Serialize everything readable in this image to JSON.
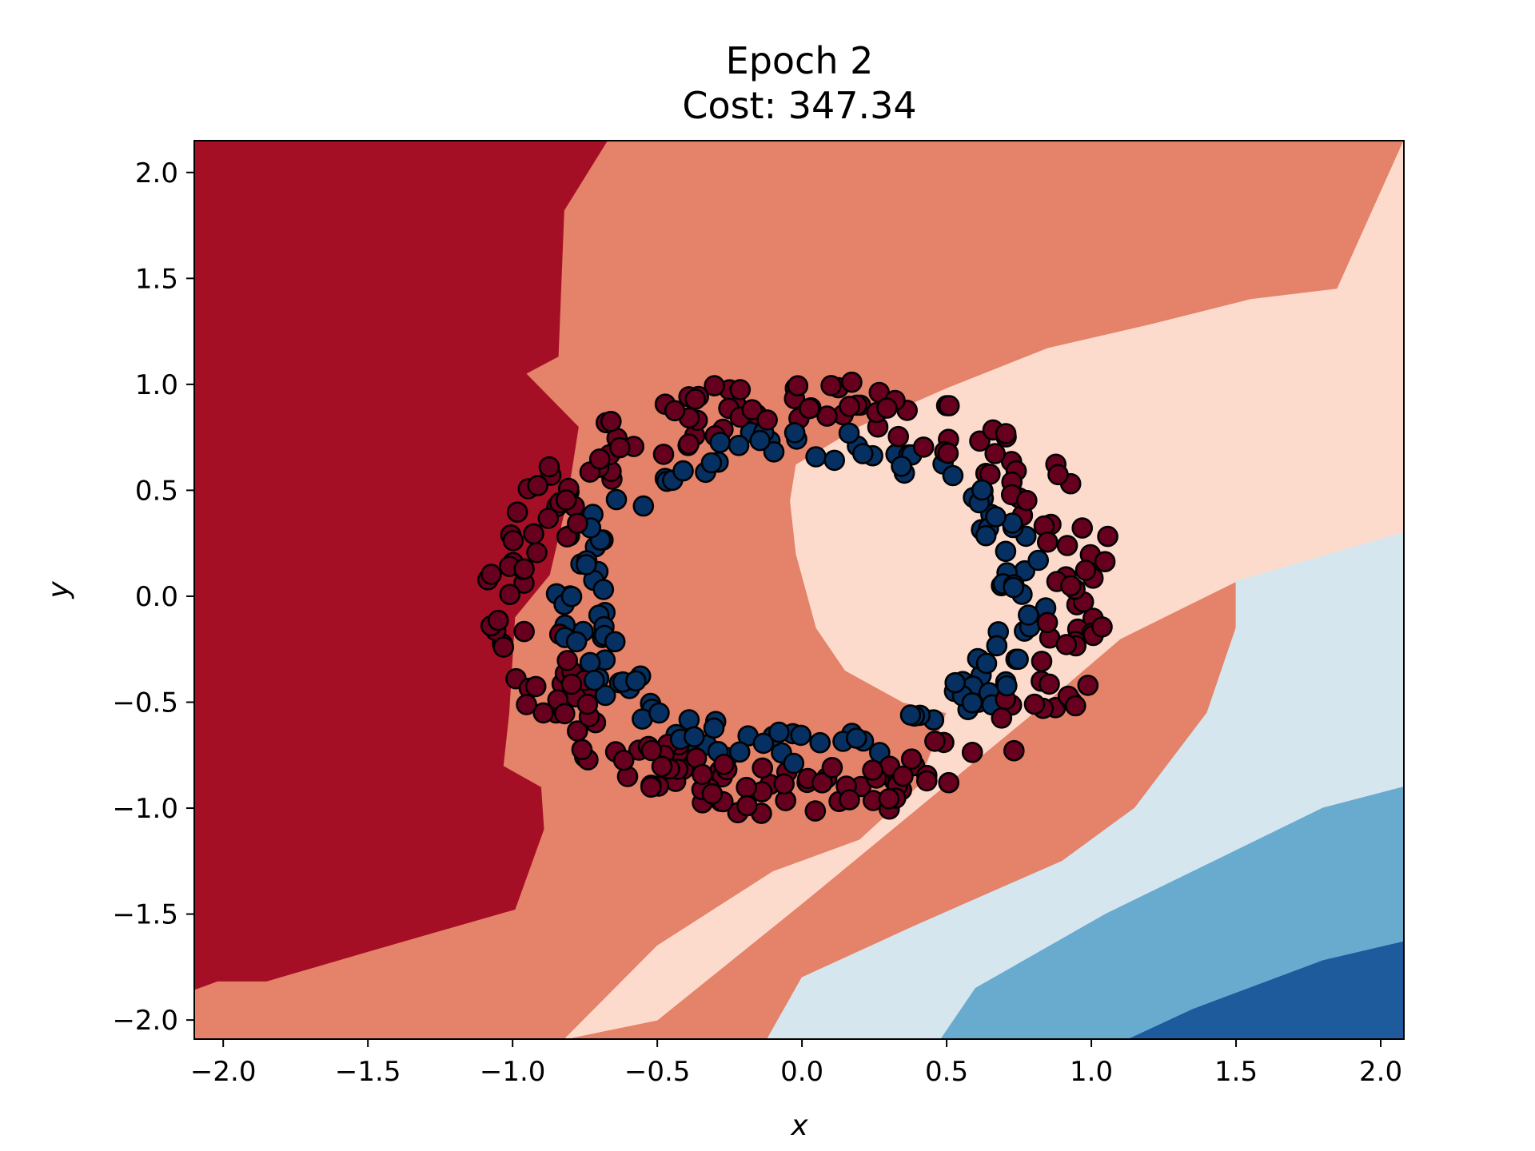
{
  "chart_data": {
    "type": "scatter",
    "title": "Epoch 2",
    "subtitle": "Cost: 347.34",
    "xlabel": "x",
    "ylabel": "y",
    "xlim": [
      -2.1,
      2.08
    ],
    "ylim": [
      -2.09,
      2.15
    ],
    "xticks": [
      -2.0,
      -1.5,
      -1.0,
      -0.5,
      0.0,
      0.5,
      1.0,
      1.5,
      2.0
    ],
    "yticks": [
      -2.0,
      -1.5,
      -1.0,
      -0.5,
      0.0,
      0.5,
      1.0,
      1.5,
      2.0
    ],
    "xtick_labels": [
      "−2.0",
      "−1.5",
      "−1.0",
      "−0.5",
      "0.0",
      "0.5",
      "1.0",
      "1.5",
      "2.0"
    ],
    "ytick_labels": [
      "−2.0",
      "−1.5",
      "−1.0",
      "−0.5",
      "0.0",
      "0.5",
      "1.0",
      "1.5",
      "2.0"
    ],
    "grid": false,
    "colors": {
      "class_outer": "#67001f",
      "class_inner": "#053061",
      "level_1": "#a50f26",
      "level_2": "#e4826a",
      "level_3": "#fcdbcc",
      "level_4": "#d6e6ef",
      "level_5": "#69abcf",
      "level_6": "#1d5b9d"
    },
    "decision_regions": [
      {
        "level": 1,
        "polygon": [
          [
            -2.1,
            2.15
          ],
          [
            -0.67,
            2.15
          ],
          [
            -0.82,
            1.82
          ],
          [
            -0.84,
            1.13
          ],
          [
            -0.95,
            1.05
          ],
          [
            -0.77,
            0.8
          ],
          [
            -0.81,
            0.45
          ],
          [
            -0.87,
            0.1
          ],
          [
            -0.99,
            -0.1
          ],
          [
            -1.01,
            -0.55
          ],
          [
            -1.03,
            -0.8
          ],
          [
            -0.9,
            -0.9
          ],
          [
            -0.89,
            -1.1
          ],
          [
            -0.99,
            -1.48
          ],
          [
            -1.5,
            -1.68
          ],
          [
            -1.85,
            -1.82
          ],
          [
            -2.02,
            -1.82
          ],
          [
            -2.1,
            -1.86
          ]
        ]
      },
      {
        "level": 2,
        "polygon": [
          [
            -0.67,
            2.15
          ],
          [
            2.08,
            2.15
          ],
          [
            1.85,
            1.45
          ],
          [
            1.55,
            1.4
          ],
          [
            1.2,
            1.28
          ],
          [
            0.85,
            1.17
          ],
          [
            0.5,
            0.98
          ],
          [
            0.2,
            0.8
          ],
          [
            -0.02,
            0.62
          ],
          [
            -0.04,
            0.45
          ],
          [
            -0.02,
            0.2
          ],
          [
            0.05,
            -0.15
          ],
          [
            0.15,
            -0.35
          ],
          [
            0.35,
            -0.5
          ],
          [
            0.5,
            -0.55
          ],
          [
            0.4,
            -0.9
          ],
          [
            0.2,
            -1.15
          ],
          [
            -0.1,
            -1.3
          ],
          [
            -0.5,
            -1.65
          ],
          [
            -0.82,
            -2.09
          ],
          [
            -2.1,
            -2.09
          ],
          [
            -2.1,
            -1.86
          ],
          [
            -2.02,
            -1.82
          ],
          [
            -1.85,
            -1.82
          ],
          [
            -1.5,
            -1.68
          ],
          [
            -0.99,
            -1.48
          ],
          [
            -0.89,
            -1.1
          ],
          [
            -0.9,
            -0.9
          ],
          [
            -1.03,
            -0.8
          ],
          [
            -1.01,
            -0.55
          ],
          [
            -0.99,
            -0.1
          ],
          [
            -0.87,
            0.1
          ],
          [
            -0.81,
            0.45
          ],
          [
            -0.77,
            0.8
          ],
          [
            -0.95,
            1.05
          ],
          [
            -0.84,
            1.13
          ],
          [
            -0.82,
            1.82
          ]
        ]
      },
      {
        "level": 3,
        "polygon": [
          [
            2.08,
            2.15
          ],
          [
            2.08,
            0.3
          ],
          [
            1.5,
            0.07
          ],
          [
            1.1,
            -0.2
          ],
          [
            0.8,
            -0.55
          ],
          [
            0.4,
            -1.0
          ],
          [
            0.0,
            -1.45
          ],
          [
            -0.5,
            -2.0
          ],
          [
            -0.82,
            -2.09
          ],
          [
            -0.5,
            -1.65
          ],
          [
            -0.1,
            -1.3
          ],
          [
            0.2,
            -1.15
          ],
          [
            0.4,
            -0.9
          ],
          [
            0.5,
            -0.55
          ],
          [
            0.35,
            -0.5
          ],
          [
            0.15,
            -0.35
          ],
          [
            0.05,
            -0.15
          ],
          [
            -0.02,
            0.2
          ],
          [
            -0.04,
            0.45
          ],
          [
            -0.02,
            0.62
          ],
          [
            0.2,
            0.8
          ],
          [
            0.5,
            0.98
          ],
          [
            0.85,
            1.17
          ],
          [
            1.2,
            1.28
          ],
          [
            1.55,
            1.4
          ],
          [
            1.85,
            1.45
          ]
        ]
      },
      {
        "level": 4,
        "polygon": [
          [
            2.08,
            0.3
          ],
          [
            2.08,
            -0.9
          ],
          [
            1.8,
            -1.0
          ],
          [
            1.5,
            -1.2
          ],
          [
            1.05,
            -1.5
          ],
          [
            0.6,
            -1.85
          ],
          [
            0.48,
            -2.09
          ],
          [
            -0.12,
            -2.09
          ],
          [
            0.0,
            -1.8
          ],
          [
            0.4,
            -1.55
          ],
          [
            0.9,
            -1.25
          ],
          [
            1.15,
            -1.0
          ],
          [
            1.4,
            -0.55
          ],
          [
            1.5,
            -0.15
          ],
          [
            1.5,
            0.07
          ]
        ]
      },
      {
        "level": 5,
        "polygon": [
          [
            2.08,
            -0.9
          ],
          [
            2.08,
            -1.63
          ],
          [
            1.8,
            -1.72
          ],
          [
            1.35,
            -1.95
          ],
          [
            1.13,
            -2.09
          ],
          [
            0.48,
            -2.09
          ],
          [
            0.6,
            -1.85
          ],
          [
            1.05,
            -1.5
          ],
          [
            1.5,
            -1.2
          ],
          [
            1.8,
            -1.0
          ]
        ]
      },
      {
        "level": 6,
        "polygon": [
          [
            2.08,
            -1.63
          ],
          [
            2.08,
            -2.09
          ],
          [
            1.13,
            -2.09
          ],
          [
            1.35,
            -1.95
          ],
          [
            1.8,
            -1.72
          ]
        ]
      }
    ],
    "series": [
      {
        "class": "outer",
        "point_count": 250,
        "radius_range": [
          0.85,
          1.1
        ]
      },
      {
        "class": "inner",
        "point_count": 150,
        "radius_range": [
          0.68,
          0.85
        ]
      }
    ]
  }
}
